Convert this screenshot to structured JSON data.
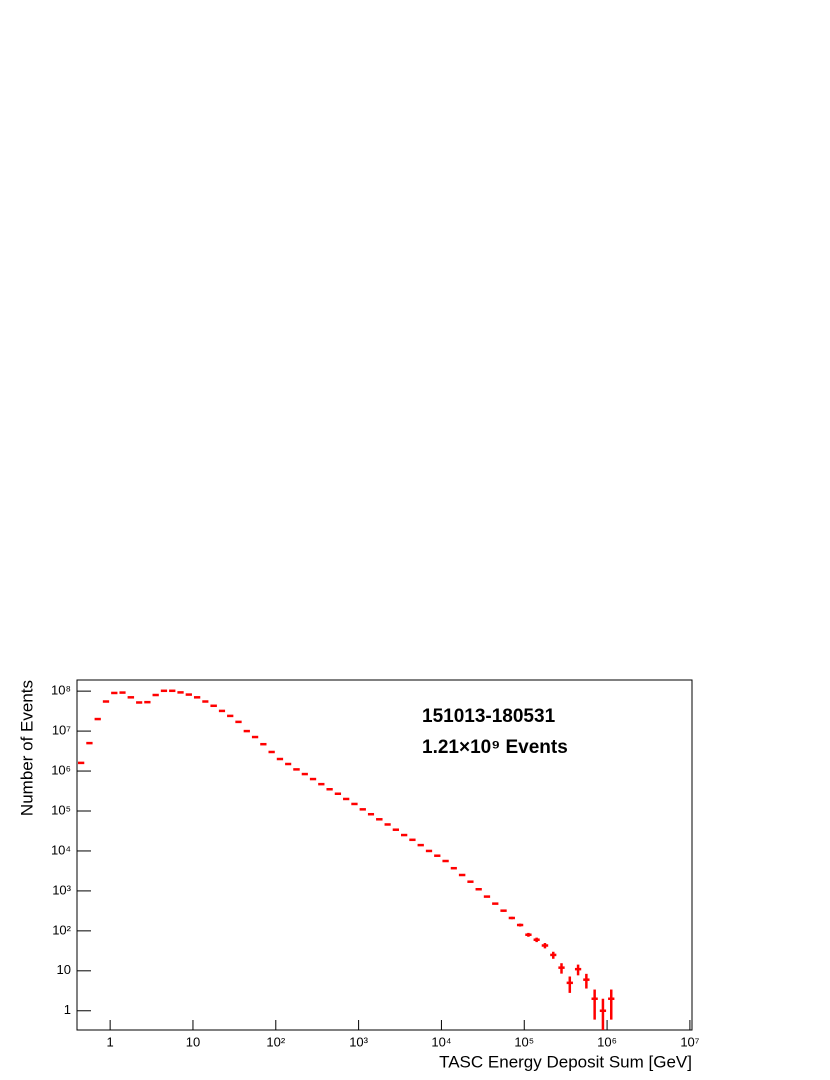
{
  "chart_data": {
    "type": "histogram",
    "log_x": true,
    "log_y": true,
    "color": "#ff0000",
    "xlabel": "TASC Energy Deposit Sum [GeV]",
    "ylabel": "Number of Events",
    "annotations": [
      "151013-180531",
      "1.21×10⁹ Events"
    ],
    "xlim": [
      0.398,
      10600000
    ],
    "ylim": [
      0.33,
      190000000
    ],
    "xticks": [
      1,
      10,
      {
        "value": 100,
        "label": "10²"
      },
      {
        "value": 1000,
        "label": "10³"
      },
      {
        "value": 10000,
        "label": "10⁴"
      },
      {
        "value": 100000,
        "label": "10⁵"
      },
      {
        "value": 1000000,
        "label": "10⁶"
      },
      {
        "value": 10000000,
        "label": "10⁷"
      }
    ],
    "yticks": [
      1,
      10,
      {
        "value": 100,
        "label": "10²"
      },
      {
        "value": 1000,
        "label": "10³"
      },
      {
        "value": 10000,
        "label": "10⁴"
      },
      {
        "value": 100000,
        "label": "10⁵"
      },
      {
        "value": 1000000,
        "label": "10⁶"
      },
      {
        "value": 10000000,
        "label": "10⁷"
      },
      {
        "value": 100000000,
        "label": "10⁸"
      }
    ],
    "bins": [
      0.398,
      0.501,
      0.631,
      0.794,
      1,
      1.26,
      1.58,
      2,
      2.51,
      3.16,
      3.98,
      5.01,
      6.31,
      7.94,
      10,
      12.6,
      15.8,
      20,
      25.1,
      31.6,
      39.8,
      50.1,
      63.1,
      79.4,
      100,
      126,
      158,
      200,
      251,
      316,
      398,
      501,
      631,
      794,
      1000,
      1260,
      1580,
      2000,
      2510,
      3160,
      3980,
      5010,
      6310,
      7940,
      10000,
      12600,
      15800,
      20000,
      25100,
      31600,
      39800,
      50100,
      63100,
      79400,
      100000,
      126000,
      158000,
      200000,
      251000,
      316000,
      398000,
      501000,
      631000,
      794000,
      1000000,
      1260000
    ],
    "counts": [
      1600000,
      5000000,
      20000000,
      55000000,
      90000000,
      92000000,
      70000000,
      52000000,
      53000000,
      80000000,
      102000000,
      102000000,
      93000000,
      82000000,
      70000000,
      55000000,
      43000000,
      32000000,
      24000000,
      17000000,
      10000000,
      7100000,
      4700000,
      3000000,
      2000000,
      1500000,
      1100000,
      840000,
      630000,
      470000,
      350000,
      270000,
      200000,
      150000,
      110000,
      83000,
      62000,
      46000,
      34000,
      25000,
      19000,
      14000,
      10000,
      7600,
      5600,
      3700,
      2500,
      1700,
      1100,
      720,
      480,
      320,
      210,
      140,
      80,
      60,
      43,
      25,
      12,
      5,
      11,
      6,
      2,
      1,
      2
    ],
    "errors": [
      1265,
      2236,
      4472,
      7416,
      9487,
      9592,
      8367,
      7211,
      7280,
      8944,
      10100,
      10100,
      9644,
      9055,
      8367,
      7416,
      6557,
      5657,
      4899,
      4123,
      3162,
      2665,
      2168,
      1732,
      1414,
      1225,
      1049,
      917,
      794,
      686,
      592,
      520,
      447,
      387,
      332,
      288,
      249,
      214,
      184,
      158,
      138,
      118,
      100,
      87,
      75,
      61,
      50,
      41,
      33,
      27,
      22,
      18,
      14.5,
      11.8,
      8.9,
      7.7,
      6.6,
      5,
      3.5,
      2.2,
      3.3,
      2.4,
      1.4,
      1,
      1.4
    ]
  }
}
